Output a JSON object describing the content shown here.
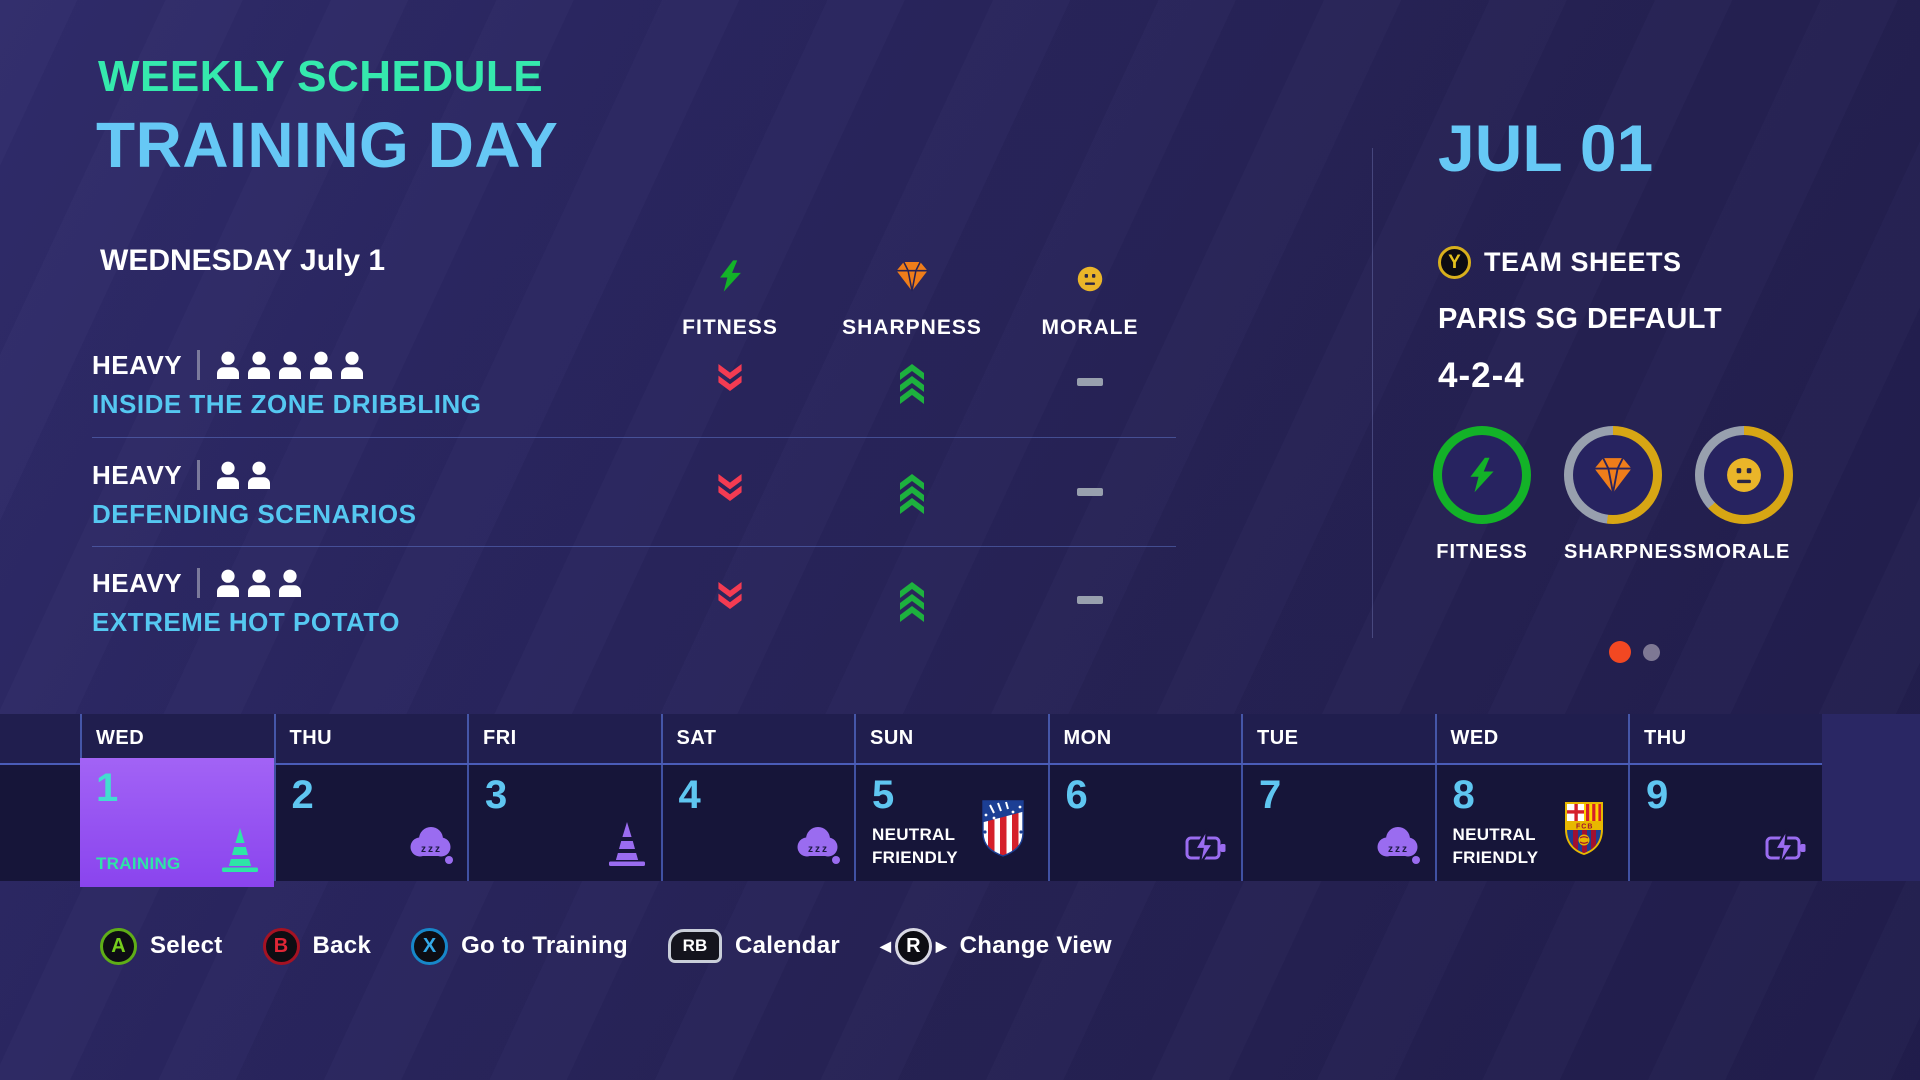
{
  "page": {
    "eyebrow": "WEEKLY SCHEDULE",
    "title": "TRAINING DAY",
    "subtitle": "WEDNESDAY July 1"
  },
  "columns": {
    "fitness": "FITNESS",
    "sharpness": "SHARPNESS",
    "morale": "MORALE"
  },
  "sessions": [
    {
      "intensity": "HEAVY",
      "players": 5,
      "title": "INSIDE THE ZONE DRIBBLING",
      "fitness_effect": "decrease-2",
      "sharpness_effect": "increase-3",
      "morale_effect": "neutral"
    },
    {
      "intensity": "HEAVY",
      "players": 2,
      "title": "DEFENDING SCENARIOS",
      "fitness_effect": "decrease-2",
      "sharpness_effect": "increase-3",
      "morale_effect": "neutral"
    },
    {
      "intensity": "HEAVY",
      "players": 3,
      "title": "EXTREME HOT POTATO",
      "fitness_effect": "decrease-2",
      "sharpness_effect": "increase-3",
      "morale_effect": "neutral"
    }
  ],
  "side_panel": {
    "date": "JUL 01",
    "team_sheets_button": "Y",
    "team_sheets_label": "TEAM SHEETS",
    "team_sheet_name": "PARIS SG DEFAULT",
    "formation": "4-2-4",
    "gauges": [
      {
        "label": "FITNESS",
        "value": 100,
        "ring_color": "#13b228",
        "icon": "bolt-icon"
      },
      {
        "label": "SHARPNESS",
        "value": 52,
        "ring_color": "#d7a614",
        "icon": "diamond-icon"
      },
      {
        "label": "MORALE",
        "value": 63,
        "ring_color": "#d7a614",
        "icon": "face-icon"
      }
    ],
    "pagination": {
      "count": 2,
      "active": 0
    }
  },
  "calendar": {
    "days": [
      {
        "dow": "WED",
        "num": "1",
        "label": "TRAINING",
        "icon": "cone",
        "selected": true
      },
      {
        "dow": "THU",
        "num": "2",
        "label": "",
        "icon": "sleep",
        "selected": false
      },
      {
        "dow": "FRI",
        "num": "3",
        "label": "",
        "icon": "cone",
        "selected": false
      },
      {
        "dow": "SAT",
        "num": "4",
        "label": "",
        "icon": "sleep",
        "selected": false
      },
      {
        "dow": "SUN",
        "num": "5",
        "label": "NEUTRAL FRIENDLY",
        "badge": "atletico",
        "selected": false
      },
      {
        "dow": "MON",
        "num": "6",
        "label": "",
        "icon": "battery",
        "selected": false
      },
      {
        "dow": "TUE",
        "num": "7",
        "label": "",
        "icon": "sleep",
        "selected": false
      },
      {
        "dow": "WED",
        "num": "8",
        "label": "NEUTRAL FRIENDLY",
        "badge": "barcelona",
        "selected": false
      },
      {
        "dow": "THU",
        "num": "9",
        "label": "",
        "icon": "battery",
        "selected": false
      }
    ]
  },
  "controls": [
    {
      "button": "A",
      "label": "Select"
    },
    {
      "button": "B",
      "label": "Back"
    },
    {
      "button": "X",
      "label": "Go to Training"
    },
    {
      "button": "RB",
      "label": "Calendar"
    },
    {
      "button": "R",
      "label": "Change View",
      "arrows": true
    }
  ],
  "colors": {
    "accent_teal": "#35e9ad",
    "accent_blue": "#66c8f5",
    "fitness_green": "#13b228",
    "sharpness_orange": "#ef7d1a",
    "morale_yellow": "#eab529",
    "decrease_red": "#f43b52",
    "increase_green": "#1db13e",
    "neutral_gray": "#98a0ae",
    "gauge_track": "#98a0ae",
    "selected_day_purple": "#9a56f3",
    "calendar_icon_purple": "#9a6cf0",
    "pagination_active": "#f24822",
    "pagination_inactive": "#7e7894"
  }
}
